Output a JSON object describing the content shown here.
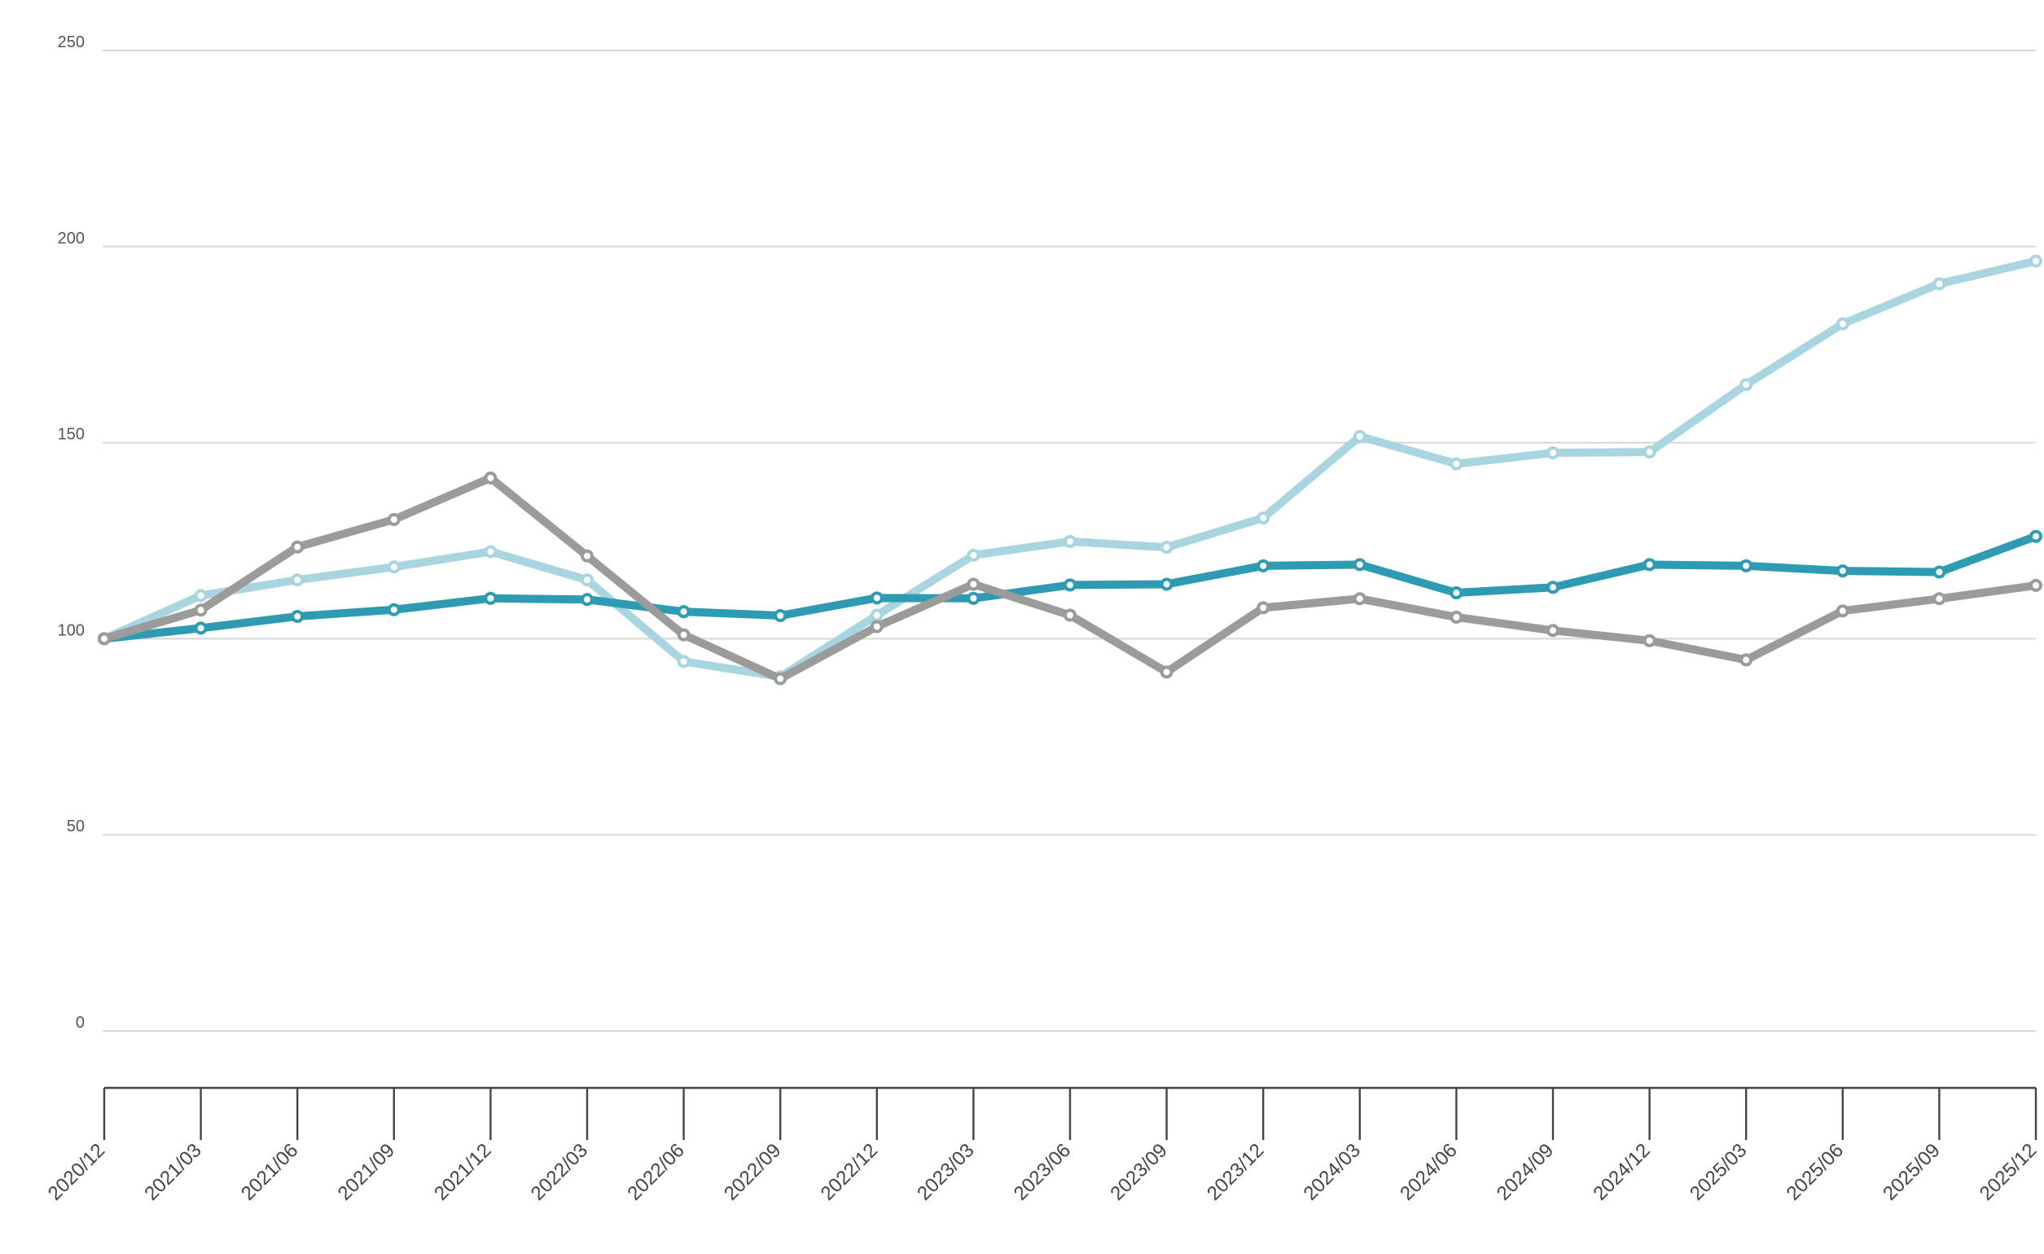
{
  "chart_data": {
    "type": "line",
    "title": "",
    "xlabel": "",
    "ylabel": "",
    "ylim": [
      0,
      250
    ],
    "yticks": [
      "0",
      "50",
      "100",
      "150",
      "200",
      "250"
    ],
    "grid": true,
    "legend": "none",
    "categories": [
      "2020/12",
      "2021/03",
      "2021/06",
      "2021/09",
      "2021/12",
      "2022/03",
      "2022/06",
      "2022/09",
      "2022/12",
      "2023/03",
      "2023/06",
      "2023/09",
      "2023/12",
      "2024/03",
      "2024/06",
      "2024/09",
      "2024/12",
      "2025/03",
      "2025/06",
      "2025/09",
      "2025/12"
    ],
    "series": [
      {
        "color": "#a8d5df",
        "values": [
          100,
          111,
          115,
          118.3,
          122.2,
          115,
          94.2,
          90.3,
          106,
          121.3,
          124.8,
          123.3,
          130.8,
          151.6,
          144.6,
          147.4,
          147.6,
          164.8,
          180.3,
          190.5,
          196.3
        ]
      },
      {
        "color": "#2e9bb3",
        "values": [
          100,
          102.7,
          105.7,
          107.4,
          110.3,
          110,
          106.9,
          105.9,
          110.4,
          110.3,
          113.7,
          113.9,
          118.6,
          118.9,
          111.7,
          113.1,
          118.9,
          118.6,
          117.3,
          117,
          126.1
        ]
      },
      {
        "color": "#9b9b9b",
        "values": [
          100,
          107.3,
          123.4,
          130.4,
          141,
          121.1,
          101,
          89.8,
          103.1,
          113.9,
          106,
          91.5,
          107.9,
          110.2,
          105.5,
          102.1,
          99.5,
          94.6,
          107.1,
          110.2,
          113.6
        ]
      }
    ]
  }
}
